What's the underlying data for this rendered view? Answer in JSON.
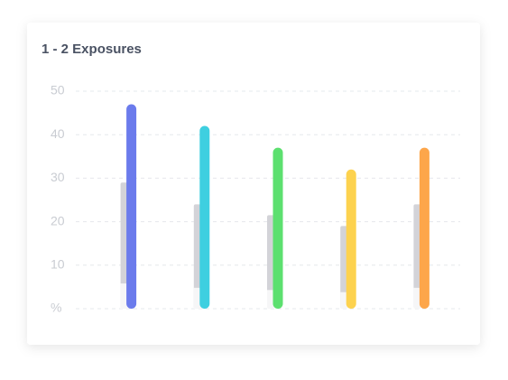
{
  "chart_data": {
    "type": "bar",
    "title": "1 - 2 Exposures",
    "categories": [
      null,
      null,
      null,
      null,
      null
    ],
    "series": [
      {
        "colors": [
          "#6b7bec",
          "#3ecfe0",
          "#5ce06f",
          "#fdd24e",
          "#fda64a"
        ],
        "values": [
          47,
          42,
          37,
          32,
          37
        ]
      },
      {
        "color": "#d3d3d8",
        "values": [
          29,
          24,
          21.5,
          19,
          24
        ]
      }
    ],
    "ylim": [
      0,
      50
    ],
    "yticks": [
      {
        "value": 0,
        "label": "%"
      },
      10,
      20,
      30,
      40,
      50
    ],
    "grid": true
  }
}
